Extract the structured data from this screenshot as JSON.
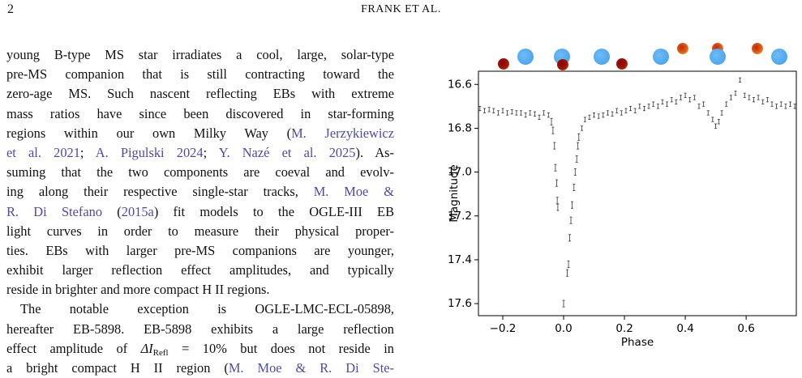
{
  "header": {
    "page_number": "2",
    "running_title": "FRANK ET AL."
  },
  "body": {
    "paragraphs": [
      {
        "lines": [
          [
            "young B-type MS star irradiates a cool, large, solar-type"
          ],
          [
            "pre-MS companion that is still contracting toward the"
          ],
          [
            "zero-age MS. Such nascent reflecting EBs with extreme"
          ],
          [
            "mass ratios have since been discovered in star-forming"
          ],
          [
            "regions within our own Milky Way (",
            {
              "cite": "M. Jerzykiewicz"
            }
          ],
          [
            {
              "cite": "et al. 2021"
            },
            "; ",
            {
              "cite": "A. Pigulski 2024"
            },
            "; ",
            {
              "cite": "Y. Nazé et al. 2025"
            },
            "). As-"
          ],
          [
            "suming that the two components are coeval and evolv-"
          ],
          [
            "ing along their respective single-star tracks, ",
            {
              "cite": "M. Moe &"
            }
          ],
          [
            {
              "cite": "R. Di Stefano"
            },
            " (",
            {
              "cite": "2015a"
            },
            ") fit models to the OGLE-III EB"
          ],
          [
            "light curves in order to measure their physical proper-"
          ],
          [
            "ties. EBs with larger pre-MS companions are younger,"
          ],
          [
            "exhibit larger reflection effect amplitudes, and typically"
          ],
          [
            "reside in brighter and more compact H II regions."
          ]
        ]
      },
      {
        "lines": [
          [
            "The notable exception is OGLE-LMC-ECL-05898,"
          ],
          [
            "hereafter EB-5898. EB-5898 exhibits a large reflection"
          ],
          [
            "effect amplitude of ",
            {
              "math": "ΔI",
              "sub": "Refl"
            },
            " = 10% but does not reside in"
          ],
          [
            "a bright compact H II region (",
            {
              "cite": "M. Moe & R. Di Ste-"
            }
          ]
        ]
      }
    ]
  },
  "chart_data": {
    "type": "errorbar",
    "xlabel": "Phase",
    "ylabel": "Magnitude",
    "color": "#333333",
    "invert_y": true,
    "xlim": [
      -0.28,
      0.765
    ],
    "ylim": [
      16.54,
      17.655
    ],
    "xticks": [
      {
        "value": -0.2,
        "label": "−0.2"
      },
      {
        "value": 0,
        "label": "0.0"
      },
      0.2,
      0.4,
      0.6
    ],
    "yticks": [
      16.6,
      16.8,
      {
        "value": 17,
        "label": "17.0"
      },
      17.2,
      17.4,
      17.6
    ],
    "x": [
      -0.275,
      -0.26,
      -0.245,
      -0.23,
      -0.215,
      -0.2,
      -0.185,
      -0.17,
      -0.155,
      -0.14,
      -0.125,
      -0.11,
      -0.095,
      -0.08,
      -0.065,
      -0.05,
      -0.04,
      -0.035,
      -0.03,
      -0.027,
      -0.023,
      -0.021,
      -0.019,
      0.0,
      0.012,
      0.016,
      0.02,
      0.024,
      0.028,
      0.034,
      0.038,
      0.043,
      0.047,
      0.05,
      0.06,
      0.07,
      0.085,
      0.1,
      0.115,
      0.13,
      0.145,
      0.16,
      0.175,
      0.19,
      0.205,
      0.22,
      0.235,
      0.25,
      0.265,
      0.28,
      0.295,
      0.31,
      0.325,
      0.34,
      0.355,
      0.37,
      0.385,
      0.4,
      0.415,
      0.43,
      0.445,
      0.46,
      0.475,
      0.49,
      0.5,
      0.51,
      0.52,
      0.535,
      0.55,
      0.565,
      0.58,
      0.595,
      0.61,
      0.625,
      0.64,
      0.655,
      0.67,
      0.685,
      0.7,
      0.715,
      0.73,
      0.745,
      0.76
    ],
    "values": [
      16.71,
      16.72,
      16.715,
      16.72,
      16.73,
      16.72,
      16.73,
      16.725,
      16.73,
      16.73,
      16.74,
      16.73,
      16.735,
      16.75,
      16.73,
      16.74,
      16.77,
      16.81,
      16.88,
      16.98,
      17.05,
      17.13,
      17.16,
      17.6,
      17.46,
      17.42,
      17.3,
      17.22,
      17.15,
      17.07,
      17.0,
      16.94,
      16.88,
      16.84,
      16.8,
      16.76,
      16.75,
      16.74,
      16.745,
      16.74,
      16.73,
      16.735,
      16.72,
      16.73,
      16.72,
      16.71,
      16.72,
      16.7,
      16.71,
      16.7,
      16.69,
      16.7,
      16.68,
      16.69,
      16.67,
      16.68,
      16.66,
      16.65,
      16.67,
      16.66,
      16.7,
      16.69,
      16.73,
      16.76,
      16.79,
      16.77,
      16.73,
      16.69,
      16.66,
      16.64,
      16.58,
      16.65,
      16.66,
      16.67,
      16.66,
      16.68,
      16.67,
      16.69,
      16.7,
      16.69,
      16.7,
      16.69,
      16.7
    ],
    "errors": [
      0.01,
      0.01,
      0.01,
      0.01,
      0.01,
      0.01,
      0.01,
      0.01,
      0.01,
      0.01,
      0.01,
      0.01,
      0.01,
      0.01,
      0.01,
      0.01,
      0.015,
      0.015,
      0.015,
      0.015,
      0.015,
      0.015,
      0.015,
      0.015,
      0.015,
      0.015,
      0.015,
      0.015,
      0.015,
      0.015,
      0.015,
      0.015,
      0.015,
      0.015,
      0.01,
      0.01,
      0.01,
      0.01,
      0.01,
      0.01,
      0.01,
      0.01,
      0.01,
      0.01,
      0.01,
      0.01,
      0.01,
      0.01,
      0.01,
      0.01,
      0.01,
      0.01,
      0.01,
      0.01,
      0.01,
      0.01,
      0.01,
      0.01,
      0.01,
      0.01,
      0.01,
      0.01,
      0.01,
      0.01,
      0.01,
      0.01,
      0.01,
      0.01,
      0.01,
      0.01,
      0.01,
      0.01,
      0.01,
      0.01,
      0.01,
      0.01,
      0.01,
      0.01,
      0.01,
      0.01,
      0.01,
      0.01,
      0.01
    ]
  }
}
